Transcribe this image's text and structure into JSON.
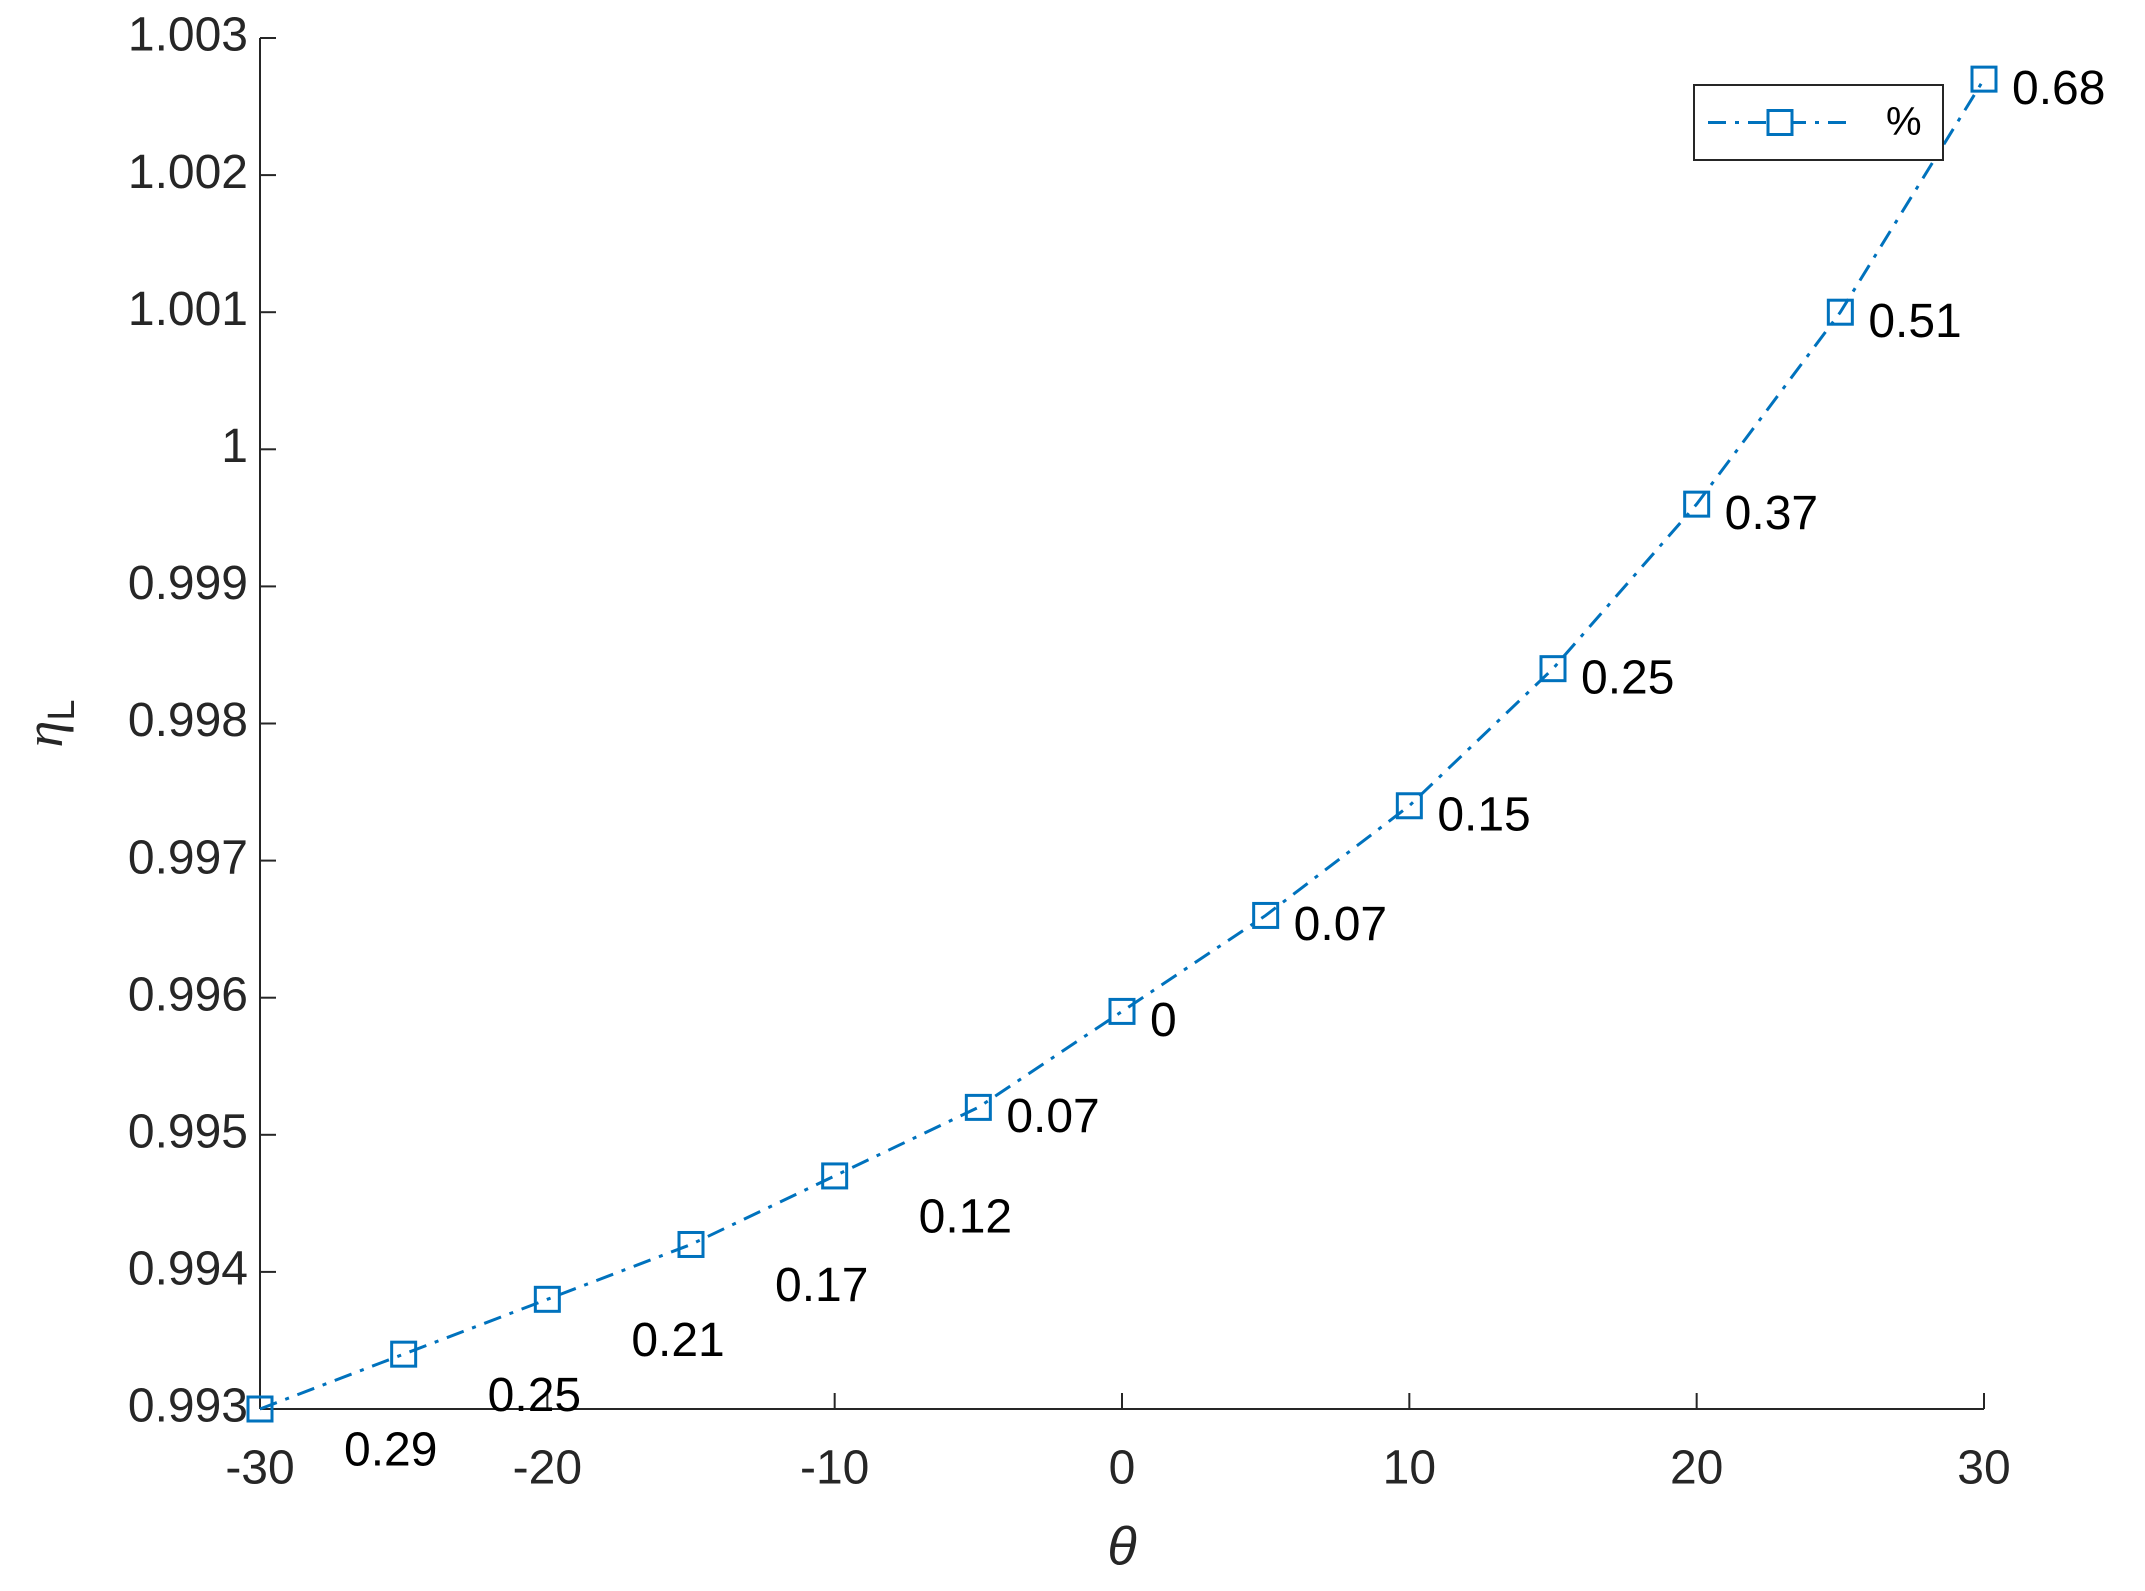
{
  "chart_data": {
    "type": "line",
    "xlabel": "θ",
    "ylabel": "η",
    "ylabel_subscript": "L",
    "x": [
      -30,
      -25,
      -20,
      -15,
      -10,
      -5,
      0,
      5,
      10,
      15,
      20,
      25,
      30
    ],
    "series": [
      {
        "name": "%",
        "color": "#0072bd",
        "values": [
          0.993,
          0.9934,
          0.9938,
          0.9942,
          0.9947,
          0.9952,
          0.9959,
          0.9966,
          0.9974,
          0.9984,
          0.9996,
          1.001,
          1.0027
        ],
        "point_labels": [
          "0.29",
          "0.25",
          "0.21",
          "0.17",
          "0.12",
          "0.07",
          "0",
          "0.07",
          "0.15",
          "0.25",
          "0.37",
          "0.51",
          "0.68"
        ]
      }
    ],
    "xlim": [
      -30,
      30
    ],
    "xticks": [
      -30,
      -20,
      -10,
      0,
      10,
      20,
      30
    ],
    "ylim": [
      0.993,
      1.003
    ],
    "yticks": [
      0.993,
      0.994,
      0.995,
      0.996,
      0.997,
      0.998,
      0.999,
      1,
      1.001,
      1.002,
      1.003
    ],
    "legend": "upper right",
    "grid": false
  }
}
